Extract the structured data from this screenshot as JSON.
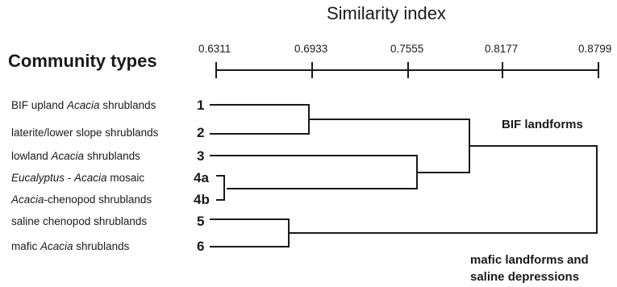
{
  "diagram": {
    "axis_title": "Similarity index",
    "heading": "Community types",
    "scale_ticks": [
      "0.6311",
      "0.6933",
      "0.7555",
      "0.8177",
      "0.8799"
    ],
    "rows": [
      {
        "number": "1",
        "label_parts": [
          {
            "text": "BIF upland ",
            "italic": false
          },
          {
            "text": "Acacia",
            "italic": true
          },
          {
            "text": " shrublands",
            "italic": false
          }
        ]
      },
      {
        "number": "2",
        "label_parts": [
          {
            "text": "laterite/lower slope shrublands",
            "italic": false
          }
        ]
      },
      {
        "number": "3",
        "label_parts": [
          {
            "text": "lowland ",
            "italic": false
          },
          {
            "text": "Acacia",
            "italic": true
          },
          {
            "text": " shrublands",
            "italic": false
          }
        ]
      },
      {
        "number": "4a",
        "label_parts": [
          {
            "text": "Eucalyptus",
            "italic": true
          },
          {
            "text": " - ",
            "italic": false
          },
          {
            "text": "Acacia",
            "italic": true
          },
          {
            "text": " mosaic",
            "italic": false
          }
        ]
      },
      {
        "number": "4b",
        "label_parts": [
          {
            "text": "Acacia",
            "italic": true
          },
          {
            "text": "-chenopod shrublands",
            "italic": false
          }
        ]
      },
      {
        "number": "5",
        "label_parts": [
          {
            "text": "saline chenopod shrublands",
            "italic": false
          }
        ]
      },
      {
        "number": "6",
        "label_parts": [
          {
            "text": "mafic ",
            "italic": false
          },
          {
            "text": "Acacia",
            "italic": true
          },
          {
            "text": " shrublands",
            "italic": false
          }
        ]
      }
    ],
    "groups": [
      {
        "lines": [
          "BIF landforms"
        ]
      },
      {
        "lines": [
          "mafic landforms and",
          "saline  depressions"
        ]
      }
    ]
  }
}
